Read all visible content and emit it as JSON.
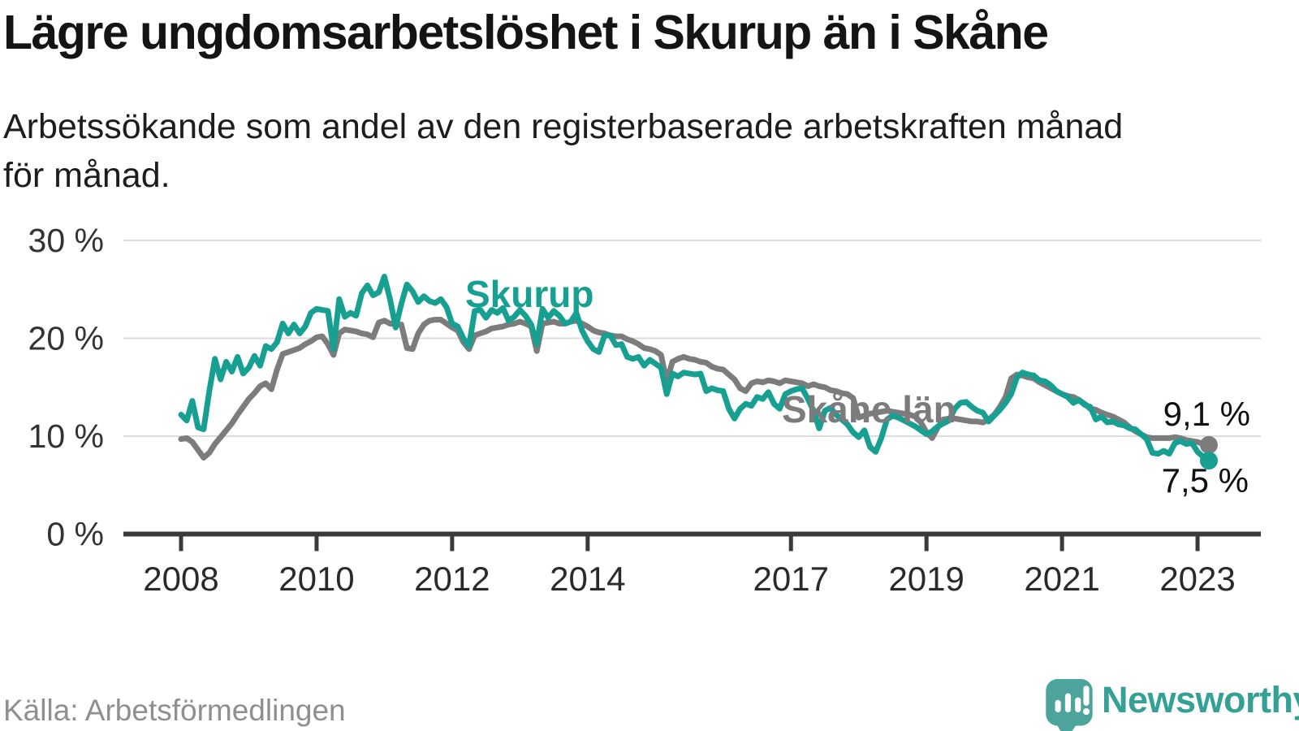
{
  "chart_data": {
    "type": "line",
    "title": "Lägre ungdomsarbetslöshet i Skurup än i Skåne",
    "subtitle_line1": "Arbetssökande som andel av den registerbaserade arbetskraften månad",
    "subtitle_line2": "för månad.",
    "grid": "horizontal",
    "legend_position": "inline-labels",
    "x_axis": {
      "unit": "month",
      "start": "2008-01",
      "end": "2023-03",
      "tick_labels": [
        "2008",
        "2010",
        "2012",
        "2014",
        "2017",
        "2019",
        "2021",
        "2023"
      ],
      "tick_years": [
        2008,
        2010,
        2012,
        2014,
        2017,
        2019,
        2021,
        2023
      ]
    },
    "y_axis": {
      "unit": "percent",
      "ylim": [
        0,
        32
      ],
      "tick_values": [
        0,
        10,
        20,
        30
      ],
      "tick_labels": [
        "0 %",
        "10 %",
        "20 %",
        "30 %"
      ]
    },
    "series": [
      {
        "name": "Skåne län",
        "color": "#7c7c7c",
        "end_label": "9,1 %",
        "last_value": 9.1,
        "values": [
          9.7,
          9.8,
          9.4,
          8.6,
          7.8,
          8.3,
          9.2,
          9.9,
          10.6,
          11.3,
          12.2,
          13.0,
          13.8,
          14.4,
          15.1,
          15.4,
          14.8,
          16.8,
          18.4,
          18.6,
          18.8,
          19.0,
          19.4,
          19.7,
          20.1,
          20.2,
          19.4,
          18.3,
          20.5,
          20.9,
          20.8,
          20.7,
          20.5,
          20.4,
          20.1,
          21.6,
          21.8,
          21.5,
          21.4,
          21.4,
          19.0,
          18.9,
          20.5,
          21.4,
          21.8,
          21.9,
          21.9,
          21.5,
          21.1,
          20.8,
          19.6,
          18.9,
          20.3,
          20.5,
          20.7,
          21.0,
          21.1,
          21.2,
          21.4,
          21.5,
          21.7,
          21.5,
          21.2,
          18.7,
          21.5,
          21.6,
          21.7,
          21.5,
          21.5,
          21.7,
          21.8,
          21.5,
          21.2,
          20.8,
          20.6,
          20.5,
          20.3,
          20.2,
          20.2,
          19.9,
          19.7,
          19.4,
          19.0,
          18.9,
          18.7,
          18.3,
          15.6,
          17.6,
          17.9,
          18.1,
          17.9,
          17.8,
          17.6,
          17.5,
          17.1,
          16.9,
          16.8,
          16.3,
          15.8,
          14.9,
          14.6,
          15.4,
          15.6,
          15.5,
          15.7,
          15.6,
          15.4,
          15.7,
          15.6,
          15.5,
          15.4,
          15.1,
          15.3,
          15.1,
          15.0,
          14.7,
          14.6,
          14.4,
          14.3,
          13.9,
          11.9,
          12.1,
          12.3,
          12.4,
          12.5,
          12.6,
          12.5,
          12.4,
          12.3,
          12.2,
          12.0,
          11.4,
          10.4,
          9.8,
          10.9,
          11.7,
          11.8,
          11.8,
          11.7,
          11.6,
          11.5,
          11.5,
          11.4,
          11.7,
          12.2,
          13.0,
          14.0,
          15.9,
          16.3,
          16.2,
          16.0,
          15.9,
          15.5,
          15.2,
          14.9,
          14.6,
          14.3,
          14.1,
          14.0,
          13.7,
          13.3,
          12.8,
          12.7,
          12.4,
          12.2,
          12.0,
          11.7,
          11.4,
          10.9,
          10.5,
          10.2,
          9.9,
          9.8,
          9.8,
          9.8,
          9.8,
          9.9,
          9.8,
          9.6,
          9.5,
          9.4,
          9.2,
          9.1
        ]
      },
      {
        "name": "Skurup",
        "color": "#17a092",
        "end_label": "7,5 %",
        "last_value": 7.5,
        "values": [
          12.2,
          11.6,
          13.6,
          10.9,
          10.7,
          14.6,
          17.9,
          15.8,
          17.6,
          16.6,
          18.1,
          16.4,
          17.0,
          18.2,
          17.2,
          19.2,
          18.9,
          19.6,
          21.5,
          20.5,
          21.4,
          20.5,
          21.2,
          22.6,
          23.0,
          22.9,
          22.8,
          18.9,
          24.0,
          22.2,
          22.6,
          22.3,
          24.6,
          25.4,
          24.4,
          24.7,
          26.3,
          24.0,
          21.1,
          23.5,
          25.5,
          24.8,
          23.7,
          24.3,
          23.8,
          23.6,
          24.0,
          23.2,
          21.5,
          21.2,
          20.0,
          19.2,
          22.8,
          22.9,
          22.1,
          22.9,
          22.6,
          23.1,
          21.8,
          22.2,
          22.9,
          22.3,
          21.4,
          19.4,
          23.0,
          22.1,
          22.8,
          22.3,
          21.5,
          21.7,
          22.6,
          20.8,
          19.7,
          18.9,
          18.6,
          20.3,
          20.3,
          19.3,
          19.4,
          18.1,
          17.9,
          18.1,
          17.2,
          17.8,
          17.4,
          17.0,
          14.3,
          16.4,
          16.1,
          16.5,
          16.4,
          16.3,
          16.4,
          14.6,
          14.9,
          14.7,
          14.6,
          12.8,
          11.8,
          12.8,
          13.3,
          13.1,
          14.0,
          13.8,
          14.5,
          13.3,
          12.8,
          14.3,
          14.6,
          14.8,
          14.9,
          13.8,
          12.6,
          10.8,
          12.6,
          12.9,
          12.2,
          11.7,
          11.2,
          10.4,
          9.9,
          10.6,
          8.9,
          8.4,
          9.8,
          11.7,
          12.1,
          11.9,
          11.6,
          11.3,
          11.0,
          10.6,
          10.2,
          10.5,
          11.0,
          11.3,
          11.6,
          12.8,
          13.4,
          13.5,
          13.0,
          12.6,
          12.4,
          11.5,
          12.1,
          12.7,
          13.4,
          14.3,
          16.0,
          16.5,
          16.3,
          16.2,
          15.7,
          15.6,
          15.2,
          14.6,
          14.3,
          14.0,
          13.4,
          13.7,
          13.2,
          13.0,
          11.7,
          12.0,
          11.4,
          11.5,
          11.2,
          11.1,
          10.8,
          10.7,
          10.2,
          9.7,
          8.3,
          8.2,
          8.5,
          8.2,
          9.3,
          9.5,
          9.2,
          9.3,
          8.4,
          7.9,
          7.5
        ]
      }
    ]
  },
  "footer": {
    "source": "Källa: Arbetsförmedlingen",
    "brand": "Newsworthy",
    "logo_icon": "newsworthy-speech-bubble-bar-chart-icon"
  },
  "colors": {
    "skurup_line": "#17a092",
    "skane_line": "#7c7c7c",
    "grid": "#dcdcdc",
    "axis": "#3a3a3a",
    "end_label_text": "#111111",
    "brand_teal": "#35a096",
    "logo_bubble": "#4ca49d"
  }
}
